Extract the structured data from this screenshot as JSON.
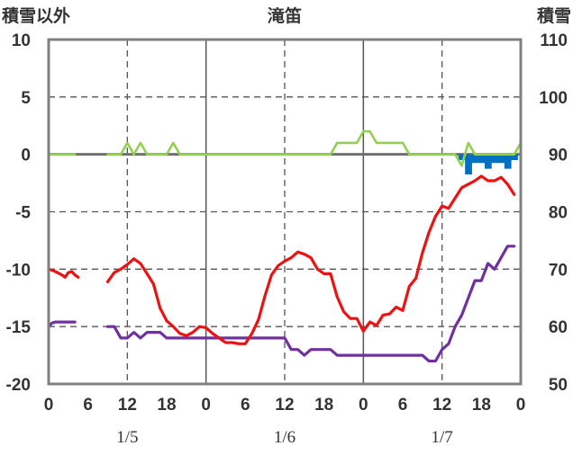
{
  "chart_data": {
    "type": "line",
    "title": "滝笛",
    "y_left_label": "積雪以外",
    "y_right_label": "積雪",
    "y_left_range": [
      -20,
      10
    ],
    "y_left_ticks": [
      10,
      5,
      0,
      -5,
      -10,
      -15,
      -20
    ],
    "y_right_range": [
      50,
      110
    ],
    "y_right_ticks": [
      110,
      100,
      90,
      80,
      70,
      60,
      50
    ],
    "x_range": [
      0,
      72
    ],
    "x_ticks": [
      0,
      6,
      12,
      18,
      24,
      30,
      36,
      42,
      48,
      54,
      60,
      66,
      72
    ],
    "x_tick_labels": [
      "0",
      "6",
      "12",
      "18",
      "0",
      "6",
      "12",
      "18",
      "0",
      "6",
      "12",
      "18",
      "0"
    ],
    "date_labels": [
      {
        "x": 12,
        "label": "1/5"
      },
      {
        "x": 36,
        "label": "1/6"
      },
      {
        "x": 60,
        "label": "1/7"
      }
    ],
    "colors": {
      "temperature": "#ee1111",
      "dew_point": "#7030a0",
      "precipitation": "#92d050",
      "snow_depth": "#0070c0",
      "zero_line": "#707070",
      "grid": "#555555",
      "frame": "#808080"
    },
    "series": [
      {
        "key": "temperature",
        "axis": "left",
        "segments": [
          [
            [
              0,
              -10
            ],
            [
              1,
              -10.2
            ],
            [
              2,
              -10.5
            ],
            [
              2.5,
              -10.7
            ],
            [
              3,
              -10.3
            ],
            [
              3.5,
              -10.2
            ],
            [
              4,
              -10.5
            ],
            [
              4.5,
              -10.7
            ]
          ],
          [
            [
              9,
              -11.1
            ],
            [
              10,
              -10.3
            ],
            [
              11,
              -10
            ],
            [
              12,
              -9.6
            ],
            [
              13,
              -9.1
            ],
            [
              14,
              -9.5
            ],
            [
              15,
              -10.4
            ],
            [
              16,
              -11.3
            ],
            [
              17,
              -13.4
            ],
            [
              18,
              -14.5
            ],
            [
              19,
              -15
            ],
            [
              20,
              -15.6
            ],
            [
              21,
              -15.8
            ],
            [
              22,
              -15.5
            ],
            [
              23,
              -15
            ],
            [
              24,
              -15.1
            ],
            [
              25,
              -15.6
            ],
            [
              26,
              -16
            ],
            [
              27,
              -16.4
            ],
            [
              28,
              -16.4
            ],
            [
              29,
              -16.5
            ],
            [
              30,
              -16.5
            ],
            [
              31,
              -15.6
            ],
            [
              32,
              -14.4
            ],
            [
              33,
              -12.3
            ],
            [
              34,
              -10.5
            ],
            [
              35,
              -9.7
            ],
            [
              36,
              -9.3
            ],
            [
              37,
              -9
            ],
            [
              38,
              -8.5
            ],
            [
              39,
              -8.7
            ],
            [
              40,
              -9
            ],
            [
              41,
              -10
            ],
            [
              42,
              -10.4
            ],
            [
              43,
              -10.4
            ],
            [
              44,
              -12.4
            ],
            [
              45,
              -13.7
            ],
            [
              46,
              -14.3
            ],
            [
              47,
              -14.3
            ],
            [
              48,
              -15.4
            ],
            [
              49,
              -14.6
            ],
            [
              50,
              -14.9
            ],
            [
              51,
              -14
            ],
            [
              52,
              -13.9
            ],
            [
              53,
              -13.3
            ],
            [
              54,
              -13.6
            ],
            [
              55,
              -11.5
            ],
            [
              56,
              -10.8
            ],
            [
              57,
              -8.6
            ],
            [
              58,
              -6.8
            ],
            [
              59,
              -5.4
            ],
            [
              60,
              -4.5
            ],
            [
              61,
              -4.7
            ],
            [
              62,
              -3.8
            ],
            [
              63,
              -2.9
            ],
            [
              64,
              -2.6
            ],
            [
              65,
              -2.3
            ],
            [
              66,
              -1.9
            ],
            [
              67,
              -2.3
            ],
            [
              68,
              -2.3
            ],
            [
              69,
              -2
            ],
            [
              70,
              -2.6
            ],
            [
              71,
              -3.5
            ]
          ]
        ]
      },
      {
        "key": "dew_point",
        "axis": "left",
        "segments": [
          [
            [
              0,
              -15
            ],
            [
              0.5,
              -14.7
            ],
            [
              1,
              -14.6
            ],
            [
              4,
              -14.6
            ]
          ],
          [
            [
              9,
              -15
            ],
            [
              10,
              -15
            ],
            [
              11,
              -16
            ],
            [
              12,
              -16
            ],
            [
              13,
              -15.5
            ],
            [
              14,
              -16
            ],
            [
              15,
              -15.5
            ],
            [
              16,
              -15.5
            ],
            [
              17,
              -15.5
            ],
            [
              18,
              -16
            ],
            [
              36,
              -16
            ],
            [
              37,
              -17
            ],
            [
              38,
              -17
            ],
            [
              39,
              -17.5
            ],
            [
              40,
              -17
            ],
            [
              43,
              -17
            ],
            [
              44,
              -17.5
            ],
            [
              57,
              -17.5
            ],
            [
              58,
              -18
            ],
            [
              59,
              -18
            ],
            [
              60,
              -17
            ],
            [
              61,
              -16.5
            ],
            [
              62,
              -15
            ],
            [
              63,
              -14
            ],
            [
              64,
              -12.5
            ],
            [
              65,
              -11
            ],
            [
              66,
              -11
            ],
            [
              67,
              -9.5
            ],
            [
              68,
              -10
            ],
            [
              69,
              -9
            ],
            [
              70,
              -8
            ],
            [
              71,
              -8
            ]
          ]
        ]
      },
      {
        "key": "precipitation",
        "axis": "left",
        "segments": [
          [
            [
              0,
              0
            ],
            [
              4,
              0
            ]
          ],
          [
            [
              9,
              0
            ],
            [
              11,
              0
            ],
            [
              12,
              1
            ],
            [
              13,
              0
            ],
            [
              14,
              1
            ],
            [
              15,
              0
            ],
            [
              18,
              0
            ],
            [
              19,
              1
            ],
            [
              20,
              0
            ],
            [
              43,
              0
            ],
            [
              44,
              1
            ],
            [
              46,
              1
            ],
            [
              47,
              1
            ],
            [
              48,
              2
            ],
            [
              49,
              2
            ],
            [
              50,
              1
            ],
            [
              52,
              1
            ],
            [
              54,
              1
            ],
            [
              55,
              0
            ],
            [
              62,
              0
            ],
            [
              63,
              -1
            ],
            [
              64,
              1
            ],
            [
              65,
              0
            ],
            [
              71,
              0
            ],
            [
              72,
              1
            ]
          ]
        ]
      }
    ],
    "snow_depth": {
      "axis": "right",
      "x": [
        63,
        64,
        65,
        66,
        67,
        68,
        69,
        70,
        71
      ],
      "values": [
        89,
        86.5,
        88.5,
        88.5,
        87.5,
        88.5,
        88.5,
        87.5,
        89
      ]
    }
  }
}
